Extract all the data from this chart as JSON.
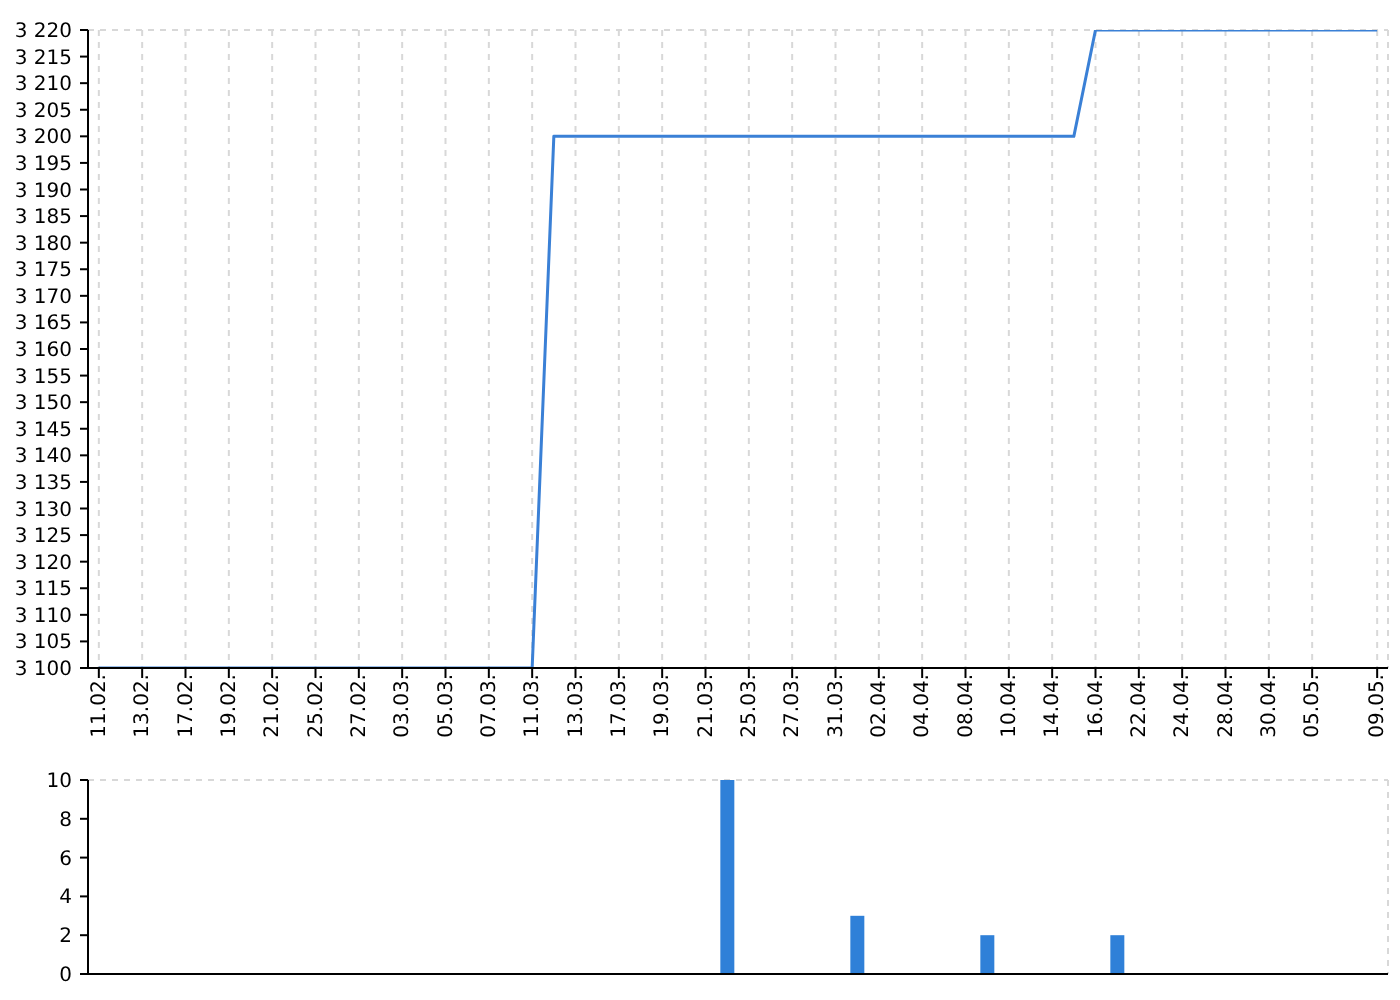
{
  "chart_data": [
    {
      "type": "line",
      "categories": [
        "11.02.",
        null,
        "13.02.",
        null,
        "17.02.",
        null,
        "19.02.",
        null,
        "21.02.",
        null,
        "25.02.",
        null,
        "27.02.",
        null,
        "03.03.",
        null,
        "05.03.",
        null,
        "07.03.",
        null,
        "11.03.",
        null,
        "13.03.",
        null,
        "17.03.",
        null,
        "19.03.",
        null,
        "21.03.",
        null,
        "25.03.",
        null,
        "27.03.",
        null,
        "31.03.",
        null,
        "02.04.",
        null,
        "04.04.",
        null,
        "08.04.",
        null,
        "10.04.",
        null,
        "14.04.",
        null,
        "16.04.",
        null,
        "22.04.",
        null,
        "24.04.",
        null,
        "28.04.",
        null,
        "30.04.",
        null,
        "05.05.",
        null,
        null,
        "09.05."
      ],
      "series": [
        {
          "color": "#3a80d6",
          "values": [
            3100,
            3100,
            3100,
            3100,
            3100,
            3100,
            3100,
            3100,
            3100,
            3100,
            3100,
            3100,
            3100,
            3100,
            3100,
            3100,
            3100,
            3100,
            3100,
            3100,
            3100,
            3200,
            3200,
            3200,
            3200,
            3200,
            3200,
            3200,
            3200,
            3200,
            3200,
            3200,
            3200,
            3200,
            3200,
            3200,
            3200,
            3200,
            3200,
            3200,
            3200,
            3200,
            3200,
            3200,
            3200,
            3200,
            3220,
            3220,
            3220,
            3220,
            3220,
            3220,
            3220,
            3220,
            3220,
            3220,
            3220,
            3220,
            3220,
            3220
          ]
        }
      ],
      "ylim": [
        3100,
        3220
      ],
      "yticks": [
        {
          "value": 3100,
          "label": "3 100"
        },
        {
          "value": 3105,
          "label": "3 105"
        },
        {
          "value": 3110,
          "label": "3 110"
        },
        {
          "value": 3115,
          "label": "3 115"
        },
        {
          "value": 3120,
          "label": "3 120"
        },
        {
          "value": 3125,
          "label": "3 125"
        },
        {
          "value": 3130,
          "label": "3 130"
        },
        {
          "value": 3135,
          "label": "3 135"
        },
        {
          "value": 3140,
          "label": "3 140"
        },
        {
          "value": 3145,
          "label": "3 145"
        },
        {
          "value": 3150,
          "label": "3 150"
        },
        {
          "value": 3155,
          "label": "3 155"
        },
        {
          "value": 3160,
          "label": "3 160"
        },
        {
          "value": 3165,
          "label": "3 165"
        },
        {
          "value": 3170,
          "label": "3 170"
        },
        {
          "value": 3175,
          "label": "3 175"
        },
        {
          "value": 3180,
          "label": "3 180"
        },
        {
          "value": 3185,
          "label": "3 185"
        },
        {
          "value": 3190,
          "label": "3 190"
        },
        {
          "value": 3195,
          "label": "3 195"
        },
        {
          "value": 3200,
          "label": "3 200"
        },
        {
          "value": 3205,
          "label": "3 205"
        },
        {
          "value": 3210,
          "label": "3 210"
        },
        {
          "value": 3215,
          "label": "3 215"
        },
        {
          "value": 3220,
          "label": "3 220"
        }
      ],
      "grid": true,
      "marker": "none"
    },
    {
      "type": "bar",
      "categories": [
        "11.02.",
        null,
        "13.02.",
        null,
        "17.02.",
        null,
        "19.02.",
        null,
        "21.02.",
        null,
        "25.02.",
        null,
        "27.02.",
        null,
        "03.03.",
        null,
        "05.03.",
        null,
        "07.03.",
        null,
        "11.03.",
        null,
        "13.03.",
        null,
        "17.03.",
        null,
        "19.03.",
        null,
        "21.03.",
        null,
        "25.03.",
        null,
        "27.03.",
        null,
        "31.03.",
        null,
        "02.04.",
        null,
        "04.04.",
        null,
        "08.04.",
        null,
        "10.04.",
        null,
        "14.04.",
        null,
        "16.04.",
        null,
        "22.04.",
        null,
        "24.04.",
        null,
        "28.04.",
        null,
        "30.04.",
        null,
        "05.05.",
        null,
        null,
        "09.05."
      ],
      "series": [
        {
          "color": "#2f80d8",
          "values": [
            0,
            0,
            0,
            0,
            0,
            0,
            0,
            0,
            0,
            0,
            0,
            0,
            0,
            0,
            0,
            0,
            0,
            0,
            0,
            0,
            0,
            0,
            0,
            0,
            0,
            0,
            0,
            0,
            0,
            10,
            0,
            0,
            0,
            0,
            0,
            3,
            0,
            0,
            0,
            0,
            0,
            2,
            0,
            0,
            0,
            0,
            0,
            2,
            0,
            0,
            0,
            0,
            0,
            0,
            0,
            0,
            0,
            0,
            0,
            0
          ]
        }
      ],
      "ylim": [
        0,
        10
      ],
      "yticks": [
        0,
        2,
        4,
        6,
        8,
        10
      ],
      "grid": true,
      "tick_labels": "y"
    }
  ]
}
